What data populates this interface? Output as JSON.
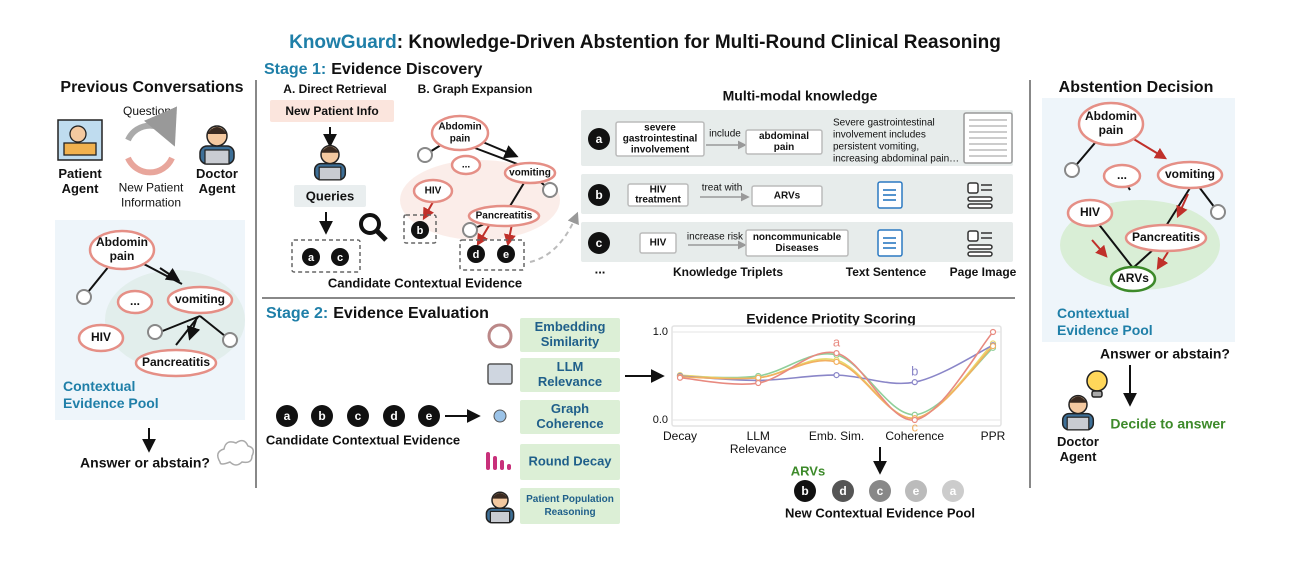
{
  "title": {
    "brand": "KnowGuard",
    "rest": ": Knowledge-Driven Abstention for Multi-Round Clinical Reasoning"
  },
  "previous": {
    "heading": "Previous Conversations",
    "questions": "Questions",
    "patient": [
      "Patient",
      "Agent"
    ],
    "doctor": [
      "Doctor",
      "Agent"
    ],
    "new_info": [
      "New Patient",
      "Information"
    ],
    "nodes": {
      "abdomin": [
        "Abdomin",
        "pain"
      ],
      "more": "...",
      "vomiting": "vomiting",
      "hiv": "HIV",
      "pancreatitis": "Pancreatitis"
    },
    "pool": [
      "Contextual",
      "Evidence Pool"
    ],
    "answer": "Answer or abstain?"
  },
  "stage1": {
    "label": "Stage 1:",
    "name": "Evidence Discovery",
    "direct": {
      "title": "A. Direct Retrieval",
      "info": "New Patient Info",
      "queries": "Queries",
      "items": [
        "a",
        "c"
      ]
    },
    "graph": {
      "title": "B. Graph Expansion",
      "nodes": {
        "abdomin": [
          "Abdomin",
          "pain"
        ],
        "more": "...",
        "vomiting": "vomiting",
        "hiv": "HIV",
        "pancreatitis": "Pancreatitis"
      },
      "items": [
        "b",
        "d",
        "e"
      ]
    },
    "candidate": "Candidate Contextual Evidence",
    "multimodal": {
      "title": "Multi-modal knowledge",
      "rows": [
        {
          "id": "a",
          "head": [
            "severe",
            "gastrointestinal",
            "involvement"
          ],
          "relation": "include",
          "tail": [
            "abdominal",
            "pain"
          ],
          "sentence": [
            "Severe gastrointestinal",
            "involvement includes",
            "persistent vomiting,",
            "increasing abdominal pain…"
          ]
        },
        {
          "id": "b",
          "head": [
            "HIV",
            "treatment"
          ],
          "relation": "treat with",
          "tail": [
            "ARVs"
          ]
        },
        {
          "id": "c",
          "head": [
            "HIV"
          ],
          "relation": "increase risk",
          "tail": [
            "noncommunicable",
            "Diseases"
          ]
        }
      ],
      "more": "...",
      "footer": [
        "Knowledge Triplets",
        "Text  Sentence",
        "Page Image"
      ]
    }
  },
  "stage2": {
    "label": "Stage 2:",
    "name": "Evidence Evaluation",
    "candidates": [
      "a",
      "b",
      "c",
      "d",
      "e"
    ],
    "candidate_label": "Candidate Contextual Evidence",
    "scores": [
      [
        "Embedding",
        "Similarity"
      ],
      [
        "LLM",
        "Relevance"
      ],
      [
        "Graph",
        "Coherence"
      ],
      [
        "Round Decay"
      ],
      [
        "Patient Population",
        "Reasoning"
      ]
    ],
    "arvs": "ARVs",
    "new_pool": [
      "b",
      "d",
      "c",
      "e",
      "a"
    ],
    "new_pool_label": "New Contextual Evidence Pool"
  },
  "chart_data": {
    "type": "line",
    "title": "Evidence Priotity Scoring",
    "categories": [
      [
        "Decay"
      ],
      [
        "LLM",
        "Relevance"
      ],
      [
        "Emb. Sim."
      ],
      [
        "Coherence"
      ],
      [
        "PPR"
      ]
    ],
    "ylim": [
      0,
      1
    ],
    "yticks": [
      {
        "value": 0,
        "label": "0.0"
      },
      {
        "value": 1,
        "label": "1.0"
      }
    ],
    "series": [
      {
        "color": "#8fcf9a",
        "values": [
          0.5,
          0.5,
          0.74,
          0.06,
          0.82
        ]
      },
      {
        "color": "#e8d86a",
        "values": [
          0.51,
          0.48,
          0.68,
          0.02,
          0.87
        ]
      },
      {
        "name": "b",
        "color": "#8a86c8",
        "values": [
          0.5,
          0.45,
          0.51,
          0.43,
          0.85
        ]
      },
      {
        "name": "c",
        "color": "#f2b060",
        "values": [
          0.49,
          0.48,
          0.66,
          0.02,
          0.84
        ]
      },
      {
        "name": "a",
        "color": "#e88a80",
        "values": [
          0.48,
          0.42,
          0.76,
          0.0,
          1.0
        ]
      }
    ]
  },
  "right": {
    "heading": "Abstention Decision",
    "nodes": {
      "abdomin": [
        "Abdomin",
        "pain"
      ],
      "more": "...",
      "vomiting": "vomiting",
      "hiv": "HIV",
      "pancreatitis": "Pancreatitis",
      "arvs": "ARVs"
    },
    "pool": [
      "Contextual",
      "Evidence Pool"
    ],
    "answer": "Answer or abstain?",
    "doctor": [
      "Doctor",
      "Agent"
    ],
    "decision": "Decide to answer"
  }
}
